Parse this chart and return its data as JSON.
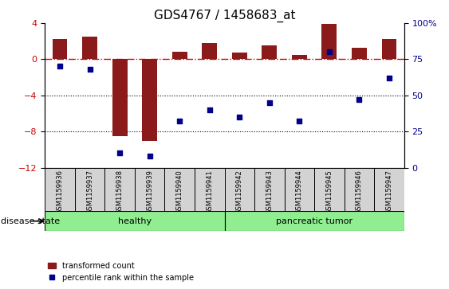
{
  "title": "GDS4767 / 1458683_at",
  "categories": [
    "GSM1159936",
    "GSM1159937",
    "GSM1159938",
    "GSM1159939",
    "GSM1159940",
    "GSM1159941",
    "GSM1159942",
    "GSM1159943",
    "GSM1159944",
    "GSM1159945",
    "GSM1159946",
    "GSM1159947"
  ],
  "bar_values": [
    2.2,
    2.5,
    -8.5,
    -9.0,
    0.8,
    1.8,
    0.7,
    1.5,
    0.5,
    3.9,
    1.3,
    2.2
  ],
  "scatter_values": [
    70,
    68,
    10,
    8,
    32,
    40,
    35,
    45,
    32,
    80,
    47,
    62
  ],
  "ylim_left": [
    -12,
    4
  ],
  "ylim_right": [
    0,
    100
  ],
  "yticks_left": [
    4,
    0,
    -4,
    -8,
    -12
  ],
  "yticks_right": [
    100,
    75,
    50,
    25,
    0
  ],
  "bar_color": "#8B1A1A",
  "scatter_color": "#00008B",
  "dashed_line_color": "#CC0000",
  "group1_label": "healthy",
  "group2_label": "pancreatic tumor",
  "group_color": "#90EE90",
  "group_label_x": "disease state",
  "legend_bar_label": "transformed count",
  "legend_scatter_label": "percentile rank within the sample",
  "tick_label_color_left": "#CC0000",
  "tick_label_color_right": "#00008B",
  "title_fontsize": 11,
  "bar_width": 0.5
}
